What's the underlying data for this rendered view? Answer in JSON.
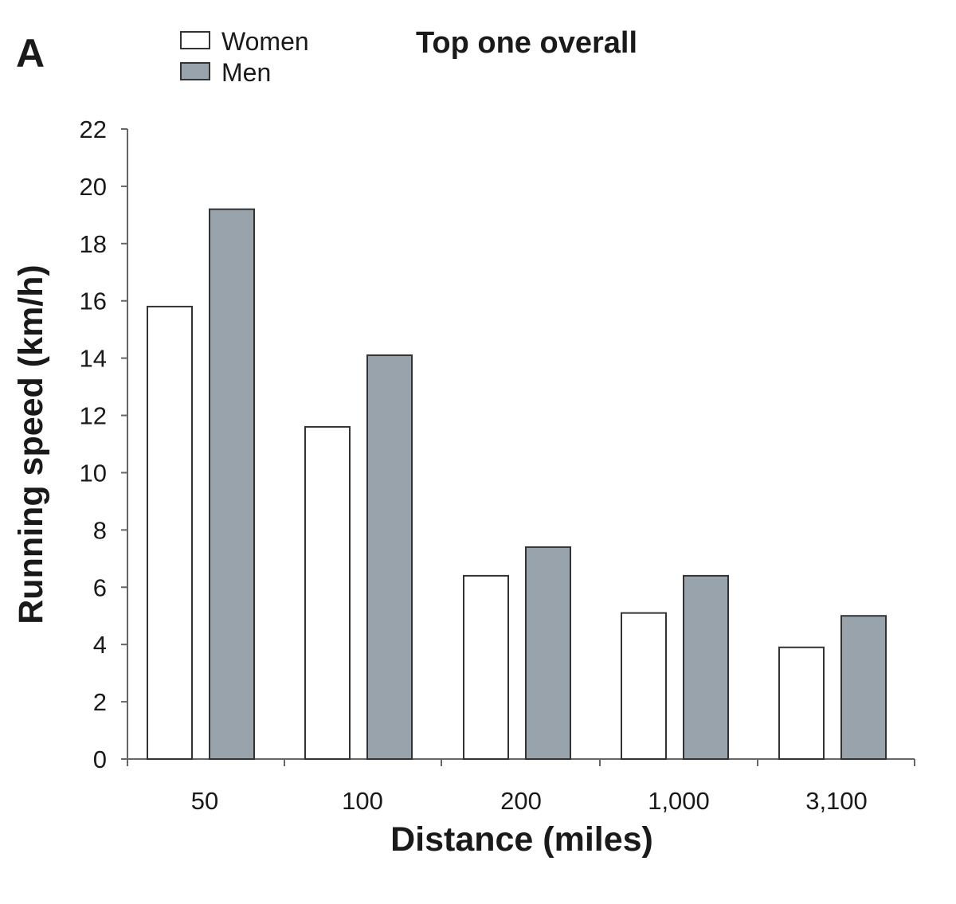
{
  "panel_label": "A",
  "chart_data": {
    "type": "bar",
    "title": "Top one overall",
    "xlabel": "Distance (miles)",
    "ylabel": "Running speed (km/h)",
    "categories": [
      "50",
      "100",
      "200",
      "1,000",
      "3,100"
    ],
    "series": [
      {
        "name": "Women",
        "values": [
          15.8,
          11.6,
          6.4,
          5.1,
          3.9
        ],
        "color": "#ffffff"
      },
      {
        "name": "Men",
        "values": [
          19.2,
          14.1,
          7.4,
          6.4,
          5.0
        ],
        "color": "#98a3ab"
      }
    ],
    "ylim": [
      0,
      22
    ],
    "yticks": [
      "0",
      "2",
      "4",
      "6",
      "8",
      "10",
      "12",
      "14",
      "16",
      "18",
      "20",
      "22"
    ],
    "grid": false,
    "legend_position": "top-left"
  }
}
